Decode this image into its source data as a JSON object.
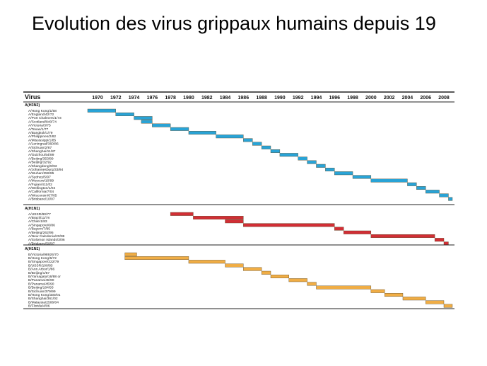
{
  "slide": {
    "title": "Evolution des virus grippaux humains depuis 19"
  },
  "chart_data": {
    "type": "timeline",
    "header": "Virus",
    "years": [
      "1970",
      "1972",
      "1974",
      "1976",
      "1978",
      "1980",
      "1982",
      "1984",
      "1986",
      "1988",
      "1990",
      "1992",
      "1994",
      "1996",
      "1998",
      "2000",
      "2002",
      "2004",
      "2006",
      "2008"
    ],
    "xlim": [
      1970,
      2008
    ],
    "groups": [
      {
        "label": "A(H3N2)",
        "color": "#29a3d6",
        "strains": [
          {
            "name": "A/Hong Kong/1/68",
            "start": 1968.0,
            "end": 1972.0
          },
          {
            "name": "A/England/42/72",
            "start": 1972.0,
            "end": 1974.0
          },
          {
            "name": "A/Port Chalmers/1/73",
            "start": 1974.0,
            "end": 1976.0
          },
          {
            "name": "A/Scotland/840/74",
            "start": 1974.8,
            "end": 1976.0
          },
          {
            "name": "A/Victoria/3/75",
            "start": 1976.0,
            "end": 1978.0
          },
          {
            "name": "A/Texas/1/77",
            "start": 1978.0,
            "end": 1980.0
          },
          {
            "name": "A/Bangkok/1/79",
            "start": 1980.0,
            "end": 1983.0
          },
          {
            "name": "A/Philippines/2/82",
            "start": 1983.0,
            "end": 1986.0
          },
          {
            "name": "A/Mississippi/1/85",
            "start": 1986.0,
            "end": 1987.0
          },
          {
            "name": "A/Leningrad/360/86",
            "start": 1987.0,
            "end": 1988.0
          },
          {
            "name": "A/Sichuan/2/87",
            "start": 1988.0,
            "end": 1989.0
          },
          {
            "name": "A/Shanghai/11/87",
            "start": 1989.0,
            "end": 1990.0
          },
          {
            "name": "A/Guizhou/54/89",
            "start": 1990.0,
            "end": 1992.0
          },
          {
            "name": "A/Beijing/353/89",
            "start": 1992.0,
            "end": 1993.0
          },
          {
            "name": "A/Beijing/32/92",
            "start": 1993.0,
            "end": 1994.0
          },
          {
            "name": "A/Shangdong/9/93",
            "start": 1994.0,
            "end": 1995.0
          },
          {
            "name": "A/Johannesburg/33/94",
            "start": 1995.0,
            "end": 1996.0
          },
          {
            "name": "A/Wuhan/359/95",
            "start": 1996.0,
            "end": 1998.0
          },
          {
            "name": "A/Sydney/5/97",
            "start": 1998.0,
            "end": 2000.0
          },
          {
            "name": "A/Moscow/10/99",
            "start": 2000.0,
            "end": 2004.0
          },
          {
            "name": "A/Fujian/411/02",
            "start": 2004.0,
            "end": 2005.0
          },
          {
            "name": "A/Wellington/1/04",
            "start": 2005.0,
            "end": 2006.0
          },
          {
            "name": "A/California/7/04",
            "start": 2006.0,
            "end": 2007.5
          },
          {
            "name": "A/Wisconsin/67/05",
            "start": 2007.5,
            "end": 2008.5
          },
          {
            "name": "A/Brisbane/10/07",
            "start": 2008.5,
            "end": 2009.3
          }
        ]
      },
      {
        "label": "A(H1N1)",
        "color": "#d12e35",
        "strains": [
          {
            "name": "A/USSR/90/77",
            "start": 1978.0,
            "end": 1980.5
          },
          {
            "name": "A/Brazil/11/78",
            "start": 1980.5,
            "end": 1986.0
          },
          {
            "name": "A/Chile/1/83",
            "start": 1984.0,
            "end": 1986.0
          },
          {
            "name": "A/Singapore/6/86",
            "start": 1986.0,
            "end": 1996.0
          },
          {
            "name": "A/Bayern/7/95",
            "start": 1996.0,
            "end": 1997.0
          },
          {
            "name": "A/Beijing/262/95",
            "start": 1997.0,
            "end": 2000.0
          },
          {
            "name": "A/New Caledonia/20/99",
            "start": 2000.0,
            "end": 2007.0
          },
          {
            "name": "A/Solomon Islands/3/06",
            "start": 2007.0,
            "end": 2008.0
          },
          {
            "name": "A/Brisbane/59/07",
            "start": 2008.0,
            "end": 2008.5
          }
        ]
      },
      {
        "label": "A(H1N1)",
        "color": "#f0ad45",
        "strains": [
          {
            "name": "B/Victoria/98926/70",
            "start": 1973.0,
            "end": 1974.3
          },
          {
            "name": "B/Hong Kong/5/72",
            "start": 1973.0,
            "end": 1980.0
          },
          {
            "name": "B/Singapore/222/79",
            "start": 1980.0,
            "end": 1984.0
          },
          {
            "name": "B/USSR/100/83",
            "start": 1984.0,
            "end": 1986.0
          },
          {
            "name": "B/Ann Arbor/1/86",
            "start": 1986.0,
            "end": 1988.0
          },
          {
            "name": "B/Beijing/1/87",
            "start": 1988.0,
            "end": 1989.0
          },
          {
            "name": "B/Yamagata/16/88 or",
            "start": 1989.0,
            "end": 1991.0
          },
          {
            "name": "B/Panama/45/90",
            "start": 1991.0,
            "end": 1993.0
          },
          {
            "name": "B/Panama/45/90",
            "start": 1993.0,
            "end": 1994.0
          },
          {
            "name": "B/Beijing/184/93",
            "start": 1994.0,
            "end": 2000.0
          },
          {
            "name": "B/Sichuan/379/99",
            "start": 2000.0,
            "end": 2001.5
          },
          {
            "name": "B/Hong Kong/330/01",
            "start": 2001.5,
            "end": 2003.5
          },
          {
            "name": "B/Shanghai/361/02",
            "start": 2003.5,
            "end": 2006.0
          },
          {
            "name": "B/Malaysia/2506/04",
            "start": 2006.0,
            "end": 2008.0
          },
          {
            "name": "B/Florida/4/06",
            "start": 2008.0,
            "end": 2009.0
          }
        ]
      }
    ]
  }
}
